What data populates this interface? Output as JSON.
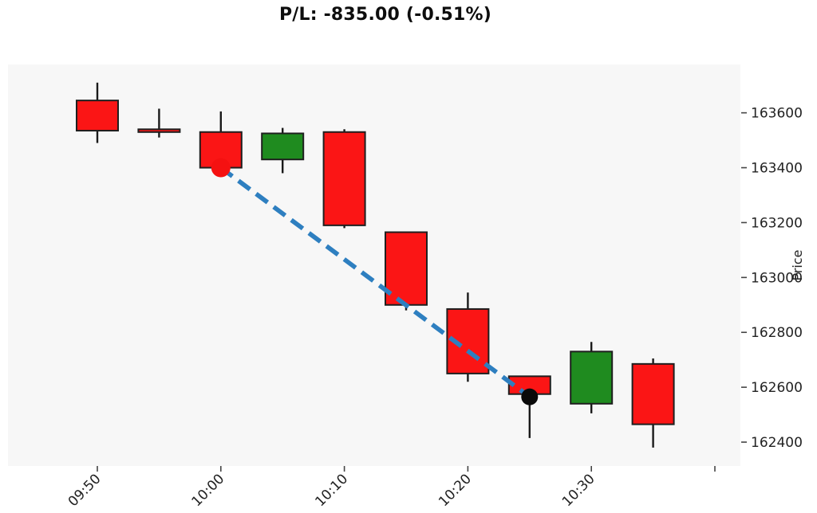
{
  "title": "P/L: -835.00 (-0.51%)",
  "pl": {
    "value": "-835.00",
    "percent": "-0.51%"
  },
  "chart_data": {
    "type": "candlestick",
    "title": "P/L: -835.00 (-0.51%)",
    "ylabel": "Price",
    "xlabel": "",
    "grid": false,
    "legend": "none",
    "ylim": [
      162313,
      163776
    ],
    "y_ticks": [
      162400,
      162600,
      162800,
      163000,
      163200,
      163400,
      163600
    ],
    "x_ticks": [
      {
        "label": "09:50",
        "slot": 0
      },
      {
        "label": "10:00",
        "slot": 2
      },
      {
        "label": "10:10",
        "slot": 4
      },
      {
        "label": "10:20",
        "slot": 6
      },
      {
        "label": "10:30",
        "slot": 8
      },
      {
        "label": "",
        "slot": 10
      }
    ],
    "candles": [
      {
        "time": "09:50",
        "open": 163645,
        "high": 163710,
        "low": 163490,
        "close": 163535,
        "direction": "down"
      },
      {
        "time": "09:55",
        "open": 163540,
        "high": 163615,
        "low": 163510,
        "close": 163530,
        "direction": "down"
      },
      {
        "time": "10:00",
        "open": 163530,
        "high": 163605,
        "low": 163400,
        "close": 163400,
        "direction": "down"
      },
      {
        "time": "10:05",
        "open": 163430,
        "high": 163545,
        "low": 163380,
        "close": 163525,
        "direction": "up"
      },
      {
        "time": "10:10",
        "open": 163530,
        "high": 163540,
        "low": 163180,
        "close": 163190,
        "direction": "down"
      },
      {
        "time": "10:15",
        "open": 163165,
        "high": 163165,
        "low": 162880,
        "close": 162900,
        "direction": "down"
      },
      {
        "time": "10:20",
        "open": 162885,
        "high": 162945,
        "low": 162620,
        "close": 162650,
        "direction": "down"
      },
      {
        "time": "10:25",
        "open": 162640,
        "high": 162640,
        "low": 162415,
        "close": 162575,
        "direction": "down"
      },
      {
        "time": "10:30",
        "open": 162540,
        "high": 162765,
        "low": 162505,
        "close": 162730,
        "direction": "up"
      },
      {
        "time": "10:35",
        "open": 162685,
        "high": 162705,
        "low": 162380,
        "close": 162465,
        "direction": "down"
      }
    ],
    "trade": {
      "entry": {
        "time": "10:00",
        "price": 163400,
        "marker_color": "#f51111"
      },
      "exit": {
        "time": "10:25",
        "price": 162565,
        "marker_color": "#0a0a0a"
      },
      "line_color": "#2e7fc0",
      "line_style": "dashed"
    },
    "colors": {
      "up": "#1f8b1f",
      "down": "#fb1515",
      "edge": "#1f1f1f",
      "wick": "#1a1a1a",
      "plot_bg": "#f7f7f7",
      "figure_bg": "#ffffff",
      "tick": "#444444",
      "text": "#222222"
    }
  }
}
